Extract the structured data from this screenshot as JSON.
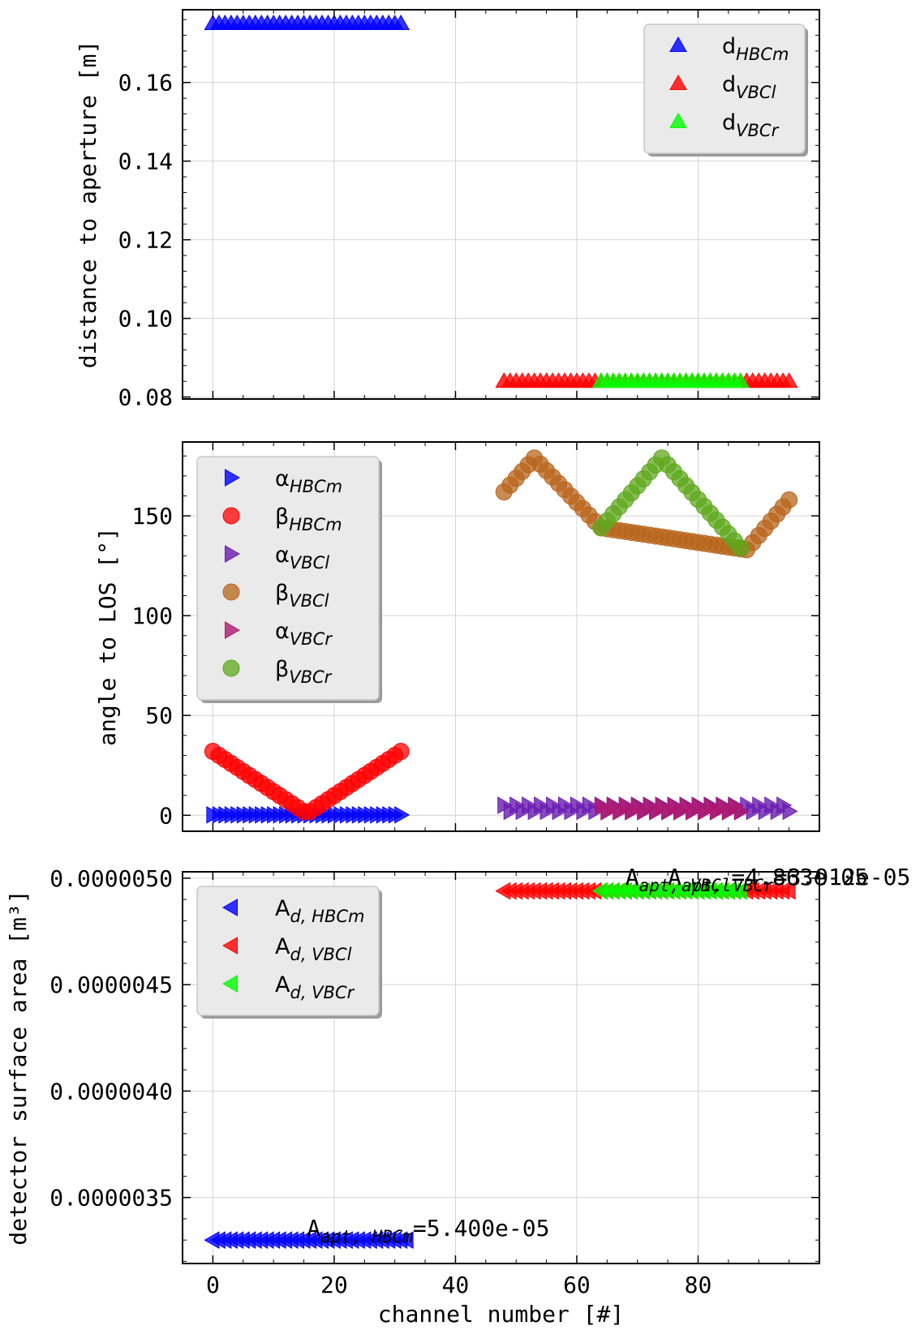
{
  "chart_data": [
    {
      "type": "scatter",
      "xlabel": "",
      "ylabel": "distance to aperture [m]",
      "xlim": [
        -5,
        100
      ],
      "ylim": [
        0.0795,
        0.1785
      ],
      "x_ticks": [
        0,
        20,
        40,
        60,
        80
      ],
      "y_ticks": [
        0.08,
        0.1,
        0.12,
        0.14,
        0.16
      ],
      "y_tick_labels": [
        "0.08",
        "0.10",
        "0.12",
        "0.14",
        "0.16"
      ],
      "grid": true,
      "legend_placement": "top-right",
      "series": [
        {
          "name": "d",
          "sub": "HBCm",
          "marker": "triangle-up",
          "color": "#0000ff",
          "x_range": [
            0,
            31
          ],
          "y": 0.175
        },
        {
          "name": "d",
          "sub": "VBCl",
          "marker": "triangle-up",
          "color": "#ff0000",
          "x_range": [
            48,
            95
          ],
          "y": 0.084
        },
        {
          "name": "d",
          "sub": "VBCr",
          "marker": "triangle-up",
          "color": "#00ff00",
          "x_range": [
            64,
            87
          ],
          "y": 0.084
        }
      ]
    },
    {
      "type": "scatter",
      "xlabel": "",
      "ylabel": "angle to LOS [°]",
      "xlim": [
        -5,
        100
      ],
      "ylim": [
        -8,
        187
      ],
      "x_ticks": [
        0,
        20,
        40,
        60,
        80
      ],
      "y_ticks": [
        0,
        50,
        100,
        150
      ],
      "y_tick_labels": [
        "0",
        "50",
        "100",
        "150"
      ],
      "grid": true,
      "legend_placement": "top-left",
      "series": [
        {
          "name": "α",
          "sub": "HBCm",
          "marker": "triangle-right",
          "color": "#0000ff",
          "x_range": [
            0,
            31
          ],
          "pattern": "constant",
          "y": 0.2
        },
        {
          "name": "β",
          "sub": "HBCm",
          "marker": "circle",
          "color": "#ff0000",
          "x_range": [
            0,
            31
          ],
          "pattern": "vee",
          "y_start": 32,
          "y_min": 0.8,
          "y_end": 32
        },
        {
          "name": "α",
          "sub": "VBCl",
          "marker": "triangle-right",
          "color": "#6a1bb0",
          "x_range": [
            48,
            95
          ],
          "pattern": "alternate",
          "y_values": [
            5,
            2
          ]
        },
        {
          "name": "β",
          "sub": "VBCl",
          "marker": "circle",
          "color": "#b8651c",
          "x_points": [
            48,
            53,
            64,
            88,
            95
          ],
          "y_points": [
            162,
            179,
            144,
            133,
            158
          ]
        },
        {
          "name": "α",
          "sub": "VBCr",
          "marker": "triangle-right",
          "color": "#b0186e",
          "x_range": [
            64,
            87
          ],
          "pattern": "alternate",
          "y_values": [
            4.6,
            1.8
          ]
        },
        {
          "name": "β",
          "sub": "VBCr",
          "marker": "circle",
          "color": "#5fa81e",
          "x_points": [
            64,
            74,
            87
          ],
          "y_points": [
            144,
            179,
            134
          ]
        }
      ]
    },
    {
      "type": "scatter",
      "xlabel": "channel number [#]",
      "ylabel": "detector surface area [m³]",
      "xlim": [
        -5,
        100
      ],
      "ylim": [
        3.19e-06,
        5.03e-06
      ],
      "x_ticks": [
        0,
        20,
        40,
        60,
        80
      ],
      "x_tick_labels": [
        "0",
        "20",
        "40",
        "60",
        "80"
      ],
      "y_ticks": [
        3.5e-06,
        4e-06,
        4.5e-06,
        5e-06
      ],
      "y_tick_labels": [
        "0.0000035",
        "0.0000040",
        "0.0000045",
        "0.0000050"
      ],
      "grid": true,
      "legend_placement": "upper-left",
      "series": [
        {
          "name": "A",
          "sub": "d, HBCm",
          "marker": "triangle-left",
          "color": "#0000ff",
          "x_range": [
            0,
            32
          ],
          "y": 3.3e-06
        },
        {
          "name": "A",
          "sub": "d, VBCl",
          "marker": "triangle-left",
          "color": "#ff0000",
          "x_range": [
            48,
            95
          ],
          "y": 4.94e-06
        },
        {
          "name": "A",
          "sub": "d, VBCr",
          "marker": "triangle-left",
          "color": "#00ff00",
          "x_range": [
            64,
            87
          ],
          "y": 4.94e-06
        }
      ],
      "annotations": [
        {
          "main": "A",
          "sub": "apt, HBCm",
          "text": "=5.400e-05",
          "x": 15.5,
          "y": 3.32e-06
        },
        {
          "main": "A",
          "sub": "apt, VBCl",
          "text": "=4.863e-05",
          "x": 68,
          "y": 4.97e-06
        },
        {
          "main": "A",
          "sub": "apt, VBCr",
          "text": "=3.912e-05",
          "x": 75,
          "y": 4.97e-06
        }
      ]
    }
  ]
}
